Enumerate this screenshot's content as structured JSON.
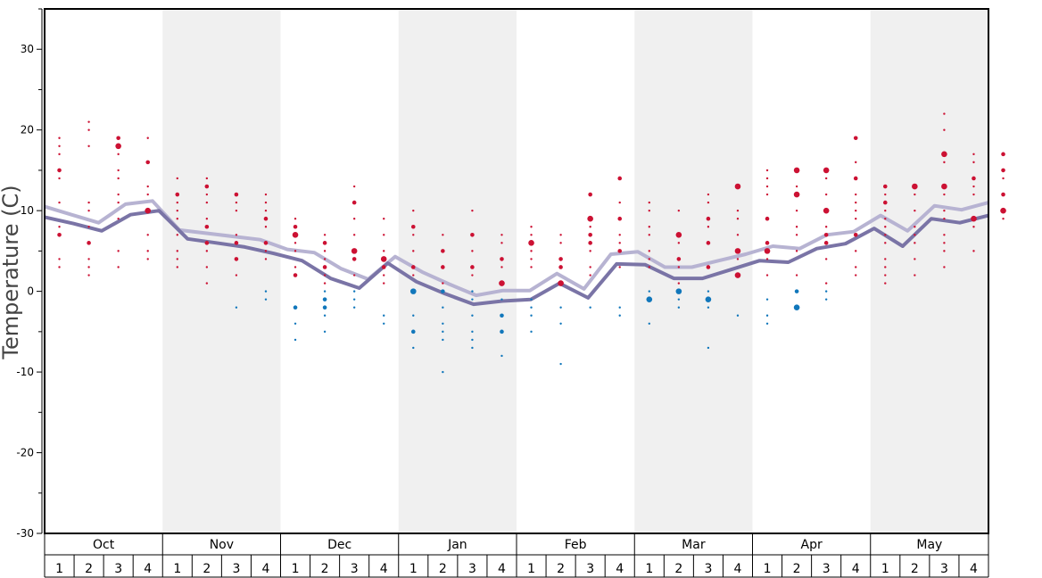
{
  "chart_data": {
    "type": "scatter",
    "title": "",
    "ylabel": "Temperature (C)",
    "xlabel": "",
    "ylim": [
      -30,
      35
    ],
    "y_ticks": [
      30,
      20,
      10,
      0,
      -10,
      -20,
      -30
    ],
    "months": [
      "Oct",
      "Nov",
      "Dec",
      "Jan",
      "Feb",
      "Mar",
      "Apr",
      "May"
    ],
    "week_labels": [
      "1",
      "2",
      "3",
      "4"
    ],
    "shaded_months": [
      "Nov",
      "Jan",
      "Mar",
      "May"
    ],
    "colors": {
      "warm": "#cc1133",
      "cold": "#1177bb",
      "line_dark": "#7a74a6",
      "line_light": "#b7b3d2",
      "shade": "#f0f0f0"
    },
    "series": [
      {
        "values": [
          10.5,
          9.5,
          8.5,
          10.8,
          11.2,
          7.6,
          7.2,
          6.8,
          6.4,
          5.2,
          4.8,
          2.8,
          1.5,
          4.3,
          2.4,
          0.9,
          -0.5,
          0.1,
          0.1,
          2.2,
          0.3,
          4.6,
          4.9,
          3.0,
          3.0,
          3.8,
          4.6,
          5.6,
          5.3,
          7.0,
          7.4,
          9.4,
          7.5,
          10.6,
          10.1,
          11.0
        ]
      },
      {
        "values": [
          9.2,
          8.4,
          7.5,
          9.5,
          10.0,
          6.5,
          6.0,
          5.5,
          4.7,
          3.8,
          1.6,
          0.4,
          3.5,
          1.2,
          -0.3,
          -1.6,
          -1.2,
          -1.0,
          1.0,
          -0.8,
          3.4,
          3.3,
          1.6,
          1.6,
          2.7,
          3.8,
          3.6,
          5.3,
          5.9,
          7.8,
          5.6,
          9.0,
          8.5,
          9.4
        ]
      }
    ],
    "points": [
      [
        0,
        19,
        1
      ],
      [
        0,
        18,
        1
      ],
      [
        0,
        17,
        1
      ],
      [
        0,
        15,
        2
      ],
      [
        0,
        14,
        1
      ],
      [
        0,
        11,
        1
      ],
      [
        0,
        8,
        1
      ],
      [
        0,
        7,
        2
      ],
      [
        0,
        4,
        1
      ],
      [
        0,
        3,
        1
      ],
      [
        1,
        21,
        1
      ],
      [
        1,
        20,
        1
      ],
      [
        1,
        18,
        1
      ],
      [
        1,
        11,
        1
      ],
      [
        1,
        10,
        1
      ],
      [
        1,
        8,
        1
      ],
      [
        1,
        6,
        2
      ],
      [
        1,
        4,
        1
      ],
      [
        1,
        3,
        1
      ],
      [
        1,
        2,
        1
      ],
      [
        2,
        19,
        2
      ],
      [
        2,
        18,
        3
      ],
      [
        2,
        17,
        1
      ],
      [
        2,
        15,
        1
      ],
      [
        2,
        14,
        1
      ],
      [
        2,
        12,
        1
      ],
      [
        2,
        11,
        1
      ],
      [
        2,
        9,
        1
      ],
      [
        2,
        5,
        1
      ],
      [
        2,
        3,
        1
      ],
      [
        3,
        19,
        1
      ],
      [
        3,
        16,
        2
      ],
      [
        3,
        13,
        1
      ],
      [
        3,
        12,
        1
      ],
      [
        3,
        10,
        3
      ],
      [
        3,
        7,
        1
      ],
      [
        3,
        5,
        1
      ],
      [
        3,
        4,
        1
      ],
      [
        4,
        14,
        1
      ],
      [
        4,
        12,
        2
      ],
      [
        4,
        11,
        1
      ],
      [
        4,
        10,
        1
      ],
      [
        4,
        9,
        1
      ],
      [
        4,
        7,
        1
      ],
      [
        4,
        5,
        1
      ],
      [
        4,
        4,
        1
      ],
      [
        4,
        3,
        1
      ],
      [
        5,
        14,
        1
      ],
      [
        5,
        13,
        2
      ],
      [
        5,
        12,
        1
      ],
      [
        5,
        11,
        1
      ],
      [
        5,
        9,
        1
      ],
      [
        5,
        8,
        2
      ],
      [
        5,
        6,
        2
      ],
      [
        5,
        5,
        1
      ],
      [
        5,
        3,
        1
      ],
      [
        5,
        1,
        1
      ],
      [
        6,
        12,
        2
      ],
      [
        6,
        11,
        1
      ],
      [
        6,
        10,
        1
      ],
      [
        6,
        7,
        1
      ],
      [
        6,
        6,
        2
      ],
      [
        6,
        4,
        2
      ],
      [
        6,
        2,
        1
      ],
      [
        6,
        -2,
        1
      ],
      [
        7,
        12,
        1
      ],
      [
        7,
        11,
        1
      ],
      [
        7,
        10,
        1
      ],
      [
        7,
        9,
        2
      ],
      [
        7,
        8,
        1
      ],
      [
        7,
        6,
        2
      ],
      [
        7,
        5,
        1
      ],
      [
        7,
        4,
        1
      ],
      [
        7,
        0,
        1
      ],
      [
        7,
        -1,
        1
      ],
      [
        8,
        9,
        1
      ],
      [
        8,
        8,
        2
      ],
      [
        8,
        7,
        3
      ],
      [
        8,
        6,
        1
      ],
      [
        8,
        5,
        1
      ],
      [
        8,
        3,
        1
      ],
      [
        8,
        2,
        2
      ],
      [
        8,
        -2,
        2
      ],
      [
        8,
        -4,
        1
      ],
      [
        8,
        -6,
        1
      ],
      [
        9,
        7,
        1
      ],
      [
        9,
        6,
        2
      ],
      [
        9,
        5,
        1
      ],
      [
        9,
        4,
        1
      ],
      [
        9,
        3,
        2
      ],
      [
        9,
        2,
        1
      ],
      [
        9,
        1,
        1
      ],
      [
        9,
        0,
        1
      ],
      [
        9,
        -1,
        2
      ],
      [
        9,
        -2,
        2
      ],
      [
        9,
        -3,
        1
      ],
      [
        9,
        -5,
        1
      ],
      [
        10,
        13,
        1
      ],
      [
        10,
        11,
        2
      ],
      [
        10,
        9,
        1
      ],
      [
        10,
        7,
        1
      ],
      [
        10,
        5,
        3
      ],
      [
        10,
        4,
        2
      ],
      [
        10,
        2,
        1
      ],
      [
        10,
        0,
        1
      ],
      [
        10,
        -1,
        1
      ],
      [
        10,
        -2,
        1
      ],
      [
        11,
        9,
        1
      ],
      [
        11,
        7,
        1
      ],
      [
        11,
        5,
        1
      ],
      [
        11,
        4,
        3
      ],
      [
        11,
        3,
        2
      ],
      [
        11,
        2,
        1
      ],
      [
        11,
        1,
        1
      ],
      [
        11,
        -3,
        1
      ],
      [
        11,
        -4,
        1
      ],
      [
        12,
        10,
        1
      ],
      [
        12,
        8,
        2
      ],
      [
        12,
        7,
        1
      ],
      [
        12,
        5,
        1
      ],
      [
        12,
        3,
        2
      ],
      [
        12,
        2,
        1
      ],
      [
        12,
        0,
        3
      ],
      [
        12,
        -3,
        1
      ],
      [
        12,
        -5,
        2
      ],
      [
        12,
        -7,
        1
      ],
      [
        13,
        7,
        1
      ],
      [
        13,
        5,
        2
      ],
      [
        13,
        3,
        2
      ],
      [
        13,
        1,
        1
      ],
      [
        13,
        0,
        2
      ],
      [
        13,
        -2,
        1
      ],
      [
        13,
        -4,
        1
      ],
      [
        13,
        -5,
        1
      ],
      [
        13,
        -6,
        1
      ],
      [
        13,
        -10,
        1
      ],
      [
        14,
        10,
        1
      ],
      [
        14,
        7,
        2
      ],
      [
        14,
        5,
        1
      ],
      [
        14,
        3,
        2
      ],
      [
        14,
        2,
        1
      ],
      [
        14,
        0,
        1
      ],
      [
        14,
        -1,
        1
      ],
      [
        14,
        -3,
        1
      ],
      [
        14,
        -5,
        1
      ],
      [
        14,
        -6,
        1
      ],
      [
        14,
        -7,
        1
      ],
      [
        15,
        7,
        1
      ],
      [
        15,
        6,
        1
      ],
      [
        15,
        4,
        2
      ],
      [
        15,
        3,
        1
      ],
      [
        15,
        1,
        3
      ],
      [
        15,
        -1,
        1
      ],
      [
        15,
        -3,
        2
      ],
      [
        15,
        -5,
        2
      ],
      [
        15,
        -8,
        1
      ],
      [
        16,
        8,
        1
      ],
      [
        16,
        7,
        1
      ],
      [
        16,
        6,
        3
      ],
      [
        16,
        5,
        1
      ],
      [
        16,
        4,
        1
      ],
      [
        16,
        3,
        1
      ],
      [
        16,
        -1,
        1
      ],
      [
        16,
        -2,
        1
      ],
      [
        16,
        -3,
        1
      ],
      [
        16,
        -5,
        1
      ],
      [
        17,
        7,
        1
      ],
      [
        17,
        6,
        1
      ],
      [
        17,
        4,
        2
      ],
      [
        17,
        3,
        2
      ],
      [
        17,
        1,
        3
      ],
      [
        17,
        -2,
        1
      ],
      [
        17,
        -4,
        1
      ],
      [
        17,
        -9,
        1
      ],
      [
        18,
        12,
        2
      ],
      [
        18,
        9,
        3
      ],
      [
        18,
        8,
        1
      ],
      [
        18,
        7,
        2
      ],
      [
        18,
        6,
        2
      ],
      [
        18,
        5,
        1
      ],
      [
        18,
        3,
        1
      ],
      [
        18,
        2,
        1
      ],
      [
        18,
        -2,
        1
      ],
      [
        19,
        14,
        2
      ],
      [
        19,
        11,
        1
      ],
      [
        19,
        9,
        2
      ],
      [
        19,
        7,
        1
      ],
      [
        19,
        6,
        1
      ],
      [
        19,
        5,
        2
      ],
      [
        19,
        3,
        1
      ],
      [
        19,
        -2,
        1
      ],
      [
        19,
        -3,
        1
      ],
      [
        20,
        11,
        1
      ],
      [
        20,
        10,
        1
      ],
      [
        20,
        8,
        1
      ],
      [
        20,
        7,
        1
      ],
      [
        20,
        5,
        1
      ],
      [
        20,
        4,
        1
      ],
      [
        20,
        3,
        1
      ],
      [
        20,
        0,
        1
      ],
      [
        20,
        -1,
        3
      ],
      [
        20,
        -4,
        1
      ],
      [
        21,
        10,
        1
      ],
      [
        21,
        7,
        3
      ],
      [
        21,
        6,
        1
      ],
      [
        21,
        4,
        2
      ],
      [
        21,
        3,
        1
      ],
      [
        21,
        1,
        1
      ],
      [
        21,
        0,
        3
      ],
      [
        21,
        -1,
        1
      ],
      [
        21,
        -2,
        1
      ],
      [
        22,
        12,
        1
      ],
      [
        22,
        11,
        1
      ],
      [
        22,
        9,
        2
      ],
      [
        22,
        8,
        1
      ],
      [
        22,
        6,
        2
      ],
      [
        22,
        3,
        2
      ],
      [
        22,
        0,
        1
      ],
      [
        22,
        -1,
        3
      ],
      [
        22,
        -2,
        1
      ],
      [
        22,
        -7,
        1
      ],
      [
        23,
        13,
        3
      ],
      [
        23,
        10,
        1
      ],
      [
        23,
        9,
        1
      ],
      [
        23,
        7,
        1
      ],
      [
        23,
        5,
        3
      ],
      [
        23,
        4,
        1
      ],
      [
        23,
        2,
        3
      ],
      [
        23,
        -3,
        1
      ],
      [
        24,
        15,
        1
      ],
      [
        24,
        14,
        1
      ],
      [
        24,
        13,
        1
      ],
      [
        24,
        12,
        1
      ],
      [
        24,
        9,
        2
      ],
      [
        24,
        6,
        2
      ],
      [
        24,
        5,
        3
      ],
      [
        24,
        4,
        1
      ],
      [
        24,
        2,
        1
      ],
      [
        24,
        -1,
        1
      ],
      [
        24,
        -3,
        1
      ],
      [
        24,
        -4,
        1
      ],
      [
        25,
        15,
        3
      ],
      [
        25,
        13,
        1
      ],
      [
        25,
        12,
        3
      ],
      [
        25,
        10,
        1
      ],
      [
        25,
        8,
        1
      ],
      [
        25,
        7,
        1
      ],
      [
        25,
        5,
        1
      ],
      [
        25,
        2,
        1
      ],
      [
        25,
        0,
        2
      ],
      [
        25,
        -2,
        3
      ],
      [
        26,
        15,
        3
      ],
      [
        26,
        14,
        1
      ],
      [
        26,
        12,
        1
      ],
      [
        26,
        10,
        3
      ],
      [
        26,
        8,
        1
      ],
      [
        26,
        7,
        2
      ],
      [
        26,
        6,
        2
      ],
      [
        26,
        4,
        1
      ],
      [
        26,
        1,
        1
      ],
      [
        26,
        0,
        1
      ],
      [
        26,
        -1,
        1
      ],
      [
        27,
        19,
        2
      ],
      [
        27,
        16,
        1
      ],
      [
        27,
        14,
        2
      ],
      [
        27,
        12,
        1
      ],
      [
        27,
        11,
        1
      ],
      [
        27,
        10,
        1
      ],
      [
        27,
        9,
        1
      ],
      [
        27,
        7,
        2
      ],
      [
        27,
        5,
        1
      ],
      [
        27,
        3,
        1
      ],
      [
        27,
        2,
        1
      ],
      [
        28,
        13,
        2
      ],
      [
        28,
        12,
        1
      ],
      [
        28,
        11,
        2
      ],
      [
        28,
        10,
        1
      ],
      [
        28,
        9,
        1
      ],
      [
        28,
        8,
        1
      ],
      [
        28,
        7,
        1
      ],
      [
        28,
        6,
        1
      ],
      [
        28,
        4,
        1
      ],
      [
        28,
        3,
        1
      ],
      [
        28,
        2,
        1
      ],
      [
        28,
        1,
        1
      ],
      [
        29,
        13,
        3
      ],
      [
        29,
        12,
        1
      ],
      [
        29,
        10,
        1
      ],
      [
        29,
        8,
        1
      ],
      [
        29,
        7,
        1
      ],
      [
        29,
        6,
        1
      ],
      [
        29,
        4,
        1
      ],
      [
        29,
        2,
        1
      ],
      [
        30,
        22,
        1
      ],
      [
        30,
        20,
        1
      ],
      [
        30,
        17,
        3
      ],
      [
        30,
        16,
        1
      ],
      [
        30,
        13,
        3
      ],
      [
        30,
        12,
        1
      ],
      [
        30,
        10,
        1
      ],
      [
        30,
        9,
        1
      ],
      [
        30,
        7,
        1
      ],
      [
        30,
        6,
        1
      ],
      [
        30,
        5,
        1
      ],
      [
        30,
        3,
        1
      ],
      [
        31,
        17,
        1
      ],
      [
        31,
        16,
        1
      ],
      [
        31,
        14,
        2
      ],
      [
        31,
        13,
        1
      ],
      [
        31,
        12,
        1
      ],
      [
        31,
        9,
        3
      ],
      [
        31,
        8,
        1
      ],
      [
        31,
        5,
        1
      ],
      [
        32,
        17,
        2
      ],
      [
        32,
        15,
        2
      ],
      [
        32,
        14,
        1
      ],
      [
        32,
        12,
        2
      ],
      [
        32,
        10,
        3
      ],
      [
        32,
        9,
        1
      ]
    ]
  }
}
